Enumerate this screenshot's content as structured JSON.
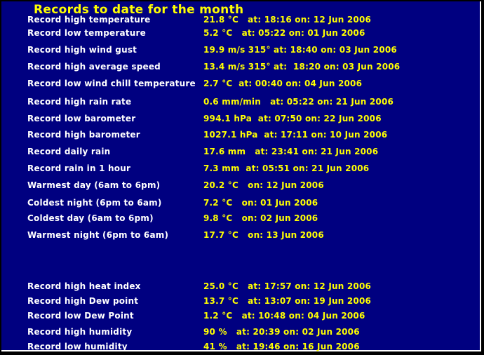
{
  "page": {
    "title": "Records to date for the month"
  },
  "colors": {
    "background": "#000080",
    "frame": "#000000",
    "edge_highlight": "#ffffff",
    "title": "#ffff00",
    "label": "#ffffff",
    "value": "#ffff00"
  },
  "records": [
    {
      "label": "Record high temperature",
      "value": "21.8 °C   at: 18:16 on: 12 Jun 2006"
    },
    {
      "label": "Record low temperature",
      "value": "5.2 °C   at: 05:22 on: 01 Jun 2006"
    },
    {
      "label": "Record high wind gust",
      "value": "19.9 m/s 315° at: 18:40 on: 03 Jun 2006"
    },
    {
      "label": "Record high average speed",
      "value": "13.4 m/s 315° at:  18:20 on: 03 Jun 2006"
    },
    {
      "label": "Record low wind chill temperature",
      "value": "2.7 °C  at: 00:40 on: 04 Jun 2006"
    },
    {
      "label": "Record high rain rate",
      "value": "0.6 mm/min   at: 05:22 on: 21 Jun 2006"
    },
    {
      "label": "Record low barometer",
      "value": "994.1 hPa  at: 07:50 on: 22 Jun 2006"
    },
    {
      "label": "Record high barometer",
      "value": "1027.1 hPa  at: 17:11 on: 10 Jun 2006"
    },
    {
      "label": "Record daily rain",
      "value": "17.6 mm   at: 23:41 on: 21 Jun 2006"
    },
    {
      "label": "Record rain in 1 hour",
      "value": "7.3 mm  at: 05:51 on: 21 Jun 2006"
    },
    {
      "label": "Warmest day (6am to 6pm)",
      "value": "20.2 °C   on: 12 Jun 2006"
    },
    {
      "label": "Coldest night (6pm to 6am)",
      "value": "7.2 °C   on: 01 Jun 2006"
    },
    {
      "label": "Coldest day (6am to 6pm)",
      "value": "9.8 °C   on: 02 Jun 2006"
    },
    {
      "label": "Warmest night (6pm to 6am)",
      "value": "17.7 °C   on: 13 Jun 2006"
    },
    {
      "label": "Record high heat index",
      "value": "25.0 °C   at: 17:57 on: 12 Jun 2006"
    },
    {
      "label": "Record high Dew point",
      "value": "13.7 °C   at: 13:07 on: 19 Jun 2006"
    },
    {
      "label": "Record low Dew Point",
      "value": "1.2 °C   at: 10:48 on: 04 Jun 2006"
    },
    {
      "label": "Record high humidity",
      "value": "90 %   at: 20:39 on: 02 Jun 2006"
    },
    {
      "label": "Record low humidity",
      "value": "41 %   at: 19:46 on: 16 Jun 2006"
    }
  ]
}
